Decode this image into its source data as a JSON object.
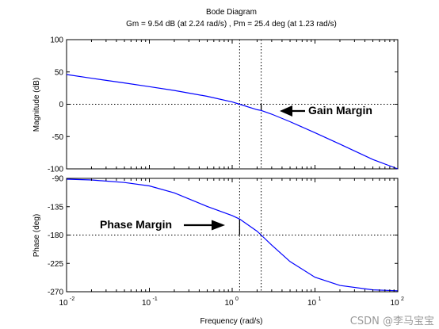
{
  "chart_data": {
    "type": "line",
    "title": "Bode Diagram",
    "subtitle": "Gm = 9.54 dB (at 2.24 rad/s) , Pm = 25.4 deg (at 1.23 rad/s)",
    "xlabel": "Frequency (rad/s)",
    "x_scale": "log",
    "xlim": [
      0.01,
      100
    ],
    "x_ticks": [
      {
        "base": "10",
        "exp": "-2"
      },
      {
        "base": "10",
        "exp": "-1"
      },
      {
        "base": "10",
        "exp": "0"
      },
      {
        "base": "10",
        "exp": "1"
      },
      {
        "base": "10",
        "exp": "2"
      }
    ],
    "grid": false,
    "line_color": "#0000ff",
    "margins": {
      "gain_crossover_freq": 1.23,
      "phase_crossover_freq": 2.24,
      "gain_margin_db": 9.54,
      "phase_margin_deg": 25.4
    },
    "panels": [
      {
        "name": "magnitude",
        "ylabel": "Magnitude (dB)",
        "ylim": [
          -100,
          100
        ],
        "y_ticks": [
          "100",
          "50",
          "0",
          "-50",
          "-100"
        ],
        "tick_values": [
          100,
          50,
          0,
          -50,
          -100
        ],
        "reference_line": 0,
        "series": {
          "x": [
            0.01,
            0.02,
            0.05,
            0.1,
            0.2,
            0.5,
            1,
            1.23,
            2,
            2.24,
            3,
            5,
            10,
            20,
            50,
            100
          ],
          "y": [
            46,
            40.3,
            33,
            27.3,
            21.4,
            12.3,
            3.5,
            0,
            -8.5,
            -9.54,
            -15.3,
            -27,
            -44,
            -61.7,
            -85.5,
            -100
          ]
        },
        "annotation": {
          "text": "Gain Margin"
        }
      },
      {
        "name": "phase",
        "ylabel": "Phase (deg)",
        "ylim": [
          -270,
          -90
        ],
        "y_ticks": [
          "-90",
          "-135",
          "-180",
          "-225",
          "-270"
        ],
        "tick_values": [
          -90,
          -135,
          -180,
          -225,
          -270
        ],
        "reference_line": -180,
        "series": {
          "x": [
            0.01,
            0.02,
            0.05,
            0.1,
            0.2,
            0.5,
            1,
            1.23,
            2,
            2.24,
            3,
            5,
            10,
            20,
            50,
            100
          ],
          "y": [
            -91.3,
            -92.5,
            -96.5,
            -102,
            -113,
            -134.5,
            -149,
            -154.6,
            -174,
            -180,
            -196,
            -222,
            -247,
            -260,
            -267,
            -268.5
          ]
        },
        "annotation": {
          "text": "Phase Margin"
        }
      }
    ]
  },
  "watermark": "CSDN @李马宝宝"
}
